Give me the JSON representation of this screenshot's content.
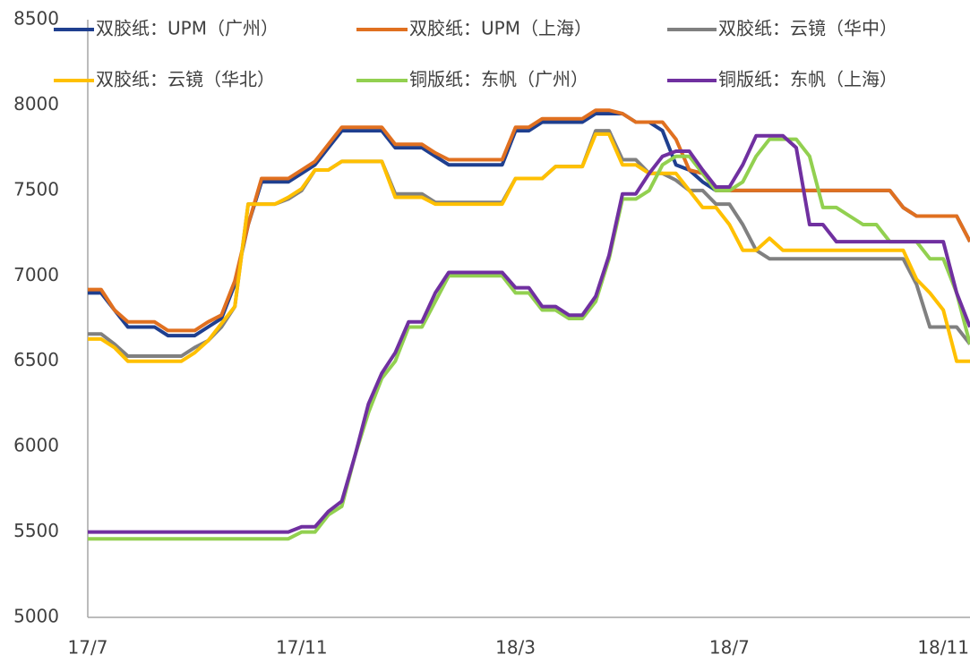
{
  "chart_data": {
    "type": "line",
    "categories": [
      "17/7",
      null,
      null,
      null,
      null,
      null,
      null,
      null,
      null,
      null,
      null,
      null,
      null,
      null,
      null,
      null,
      "17/11",
      null,
      null,
      null,
      null,
      null,
      null,
      null,
      null,
      null,
      null,
      null,
      null,
      null,
      null,
      null,
      "18/3",
      null,
      null,
      null,
      null,
      null,
      null,
      null,
      null,
      null,
      null,
      null,
      null,
      null,
      null,
      null,
      "18/7",
      null,
      null,
      null,
      null,
      null,
      null,
      null,
      null,
      null,
      null,
      null,
      null,
      null,
      null,
      null,
      "18/11",
      null,
      null
    ],
    "ylim": [
      5000,
      8500
    ],
    "yticks": [
      5000,
      5500,
      6000,
      6500,
      7000,
      7500,
      8000,
      8500
    ],
    "series": [
      {
        "name": "双胶纸：UPM（广州）",
        "color": "#1f3f8f",
        "values": [
          6900,
          6900,
          6800,
          6700,
          6700,
          6700,
          6650,
          6650,
          6650,
          6700,
          6750,
          6950,
          7300,
          7550,
          7550,
          7550,
          7600,
          7650,
          7750,
          7850,
          7850,
          7850,
          7850,
          7750,
          7750,
          7750,
          7700,
          7650,
          7650,
          7650,
          7650,
          7650,
          7850,
          7850,
          7900,
          7900,
          7900,
          7900,
          7950,
          7950,
          7950,
          7900,
          7900,
          7850,
          7650,
          7620,
          7550,
          7500,
          7500,
          7500,
          7500,
          7500,
          7500,
          7500,
          7500,
          7500,
          7500,
          7500,
          7500,
          7500,
          7500,
          7400,
          7350,
          7350,
          7350,
          7350,
          7200
        ]
      },
      {
        "name": "双胶纸：UPM（上海）",
        "color": "#e07020",
        "values": [
          6920,
          6920,
          6800,
          6730,
          6730,
          6730,
          6680,
          6680,
          6680,
          6730,
          6770,
          6970,
          7300,
          7570,
          7570,
          7570,
          7620,
          7670,
          7770,
          7870,
          7870,
          7870,
          7870,
          7770,
          7770,
          7770,
          7720,
          7680,
          7680,
          7680,
          7680,
          7680,
          7870,
          7870,
          7920,
          7920,
          7920,
          7920,
          7970,
          7970,
          7950,
          7900,
          7900,
          7900,
          7800,
          7620,
          7600,
          7500,
          7500,
          7500,
          7500,
          7500,
          7500,
          7500,
          7500,
          7500,
          7500,
          7500,
          7500,
          7500,
          7500,
          7400,
          7350,
          7350,
          7350,
          7350,
          7200
        ]
      },
      {
        "name": "双胶纸：云镜（华中）",
        "color": "#808080",
        "values": [
          6660,
          6660,
          6600,
          6530,
          6530,
          6530,
          6530,
          6530,
          6580,
          6620,
          6700,
          6820,
          7420,
          7420,
          7420,
          7450,
          7500,
          7620,
          7620,
          7670,
          7670,
          7670,
          7670,
          7480,
          7480,
          7480,
          7430,
          7430,
          7430,
          7430,
          7430,
          7430,
          7570,
          7570,
          7570,
          7640,
          7640,
          7640,
          7850,
          7850,
          7680,
          7680,
          7600,
          7600,
          7560,
          7500,
          7500,
          7420,
          7420,
          7300,
          7150,
          7100,
          7100,
          7100,
          7100,
          7100,
          7100,
          7100,
          7100,
          7100,
          7100,
          7100,
          6950,
          6700,
          6700,
          6700,
          6600
        ]
      },
      {
        "name": "双胶纸：云镜（华北）",
        "color": "#ffc000",
        "values": [
          6630,
          6630,
          6580,
          6500,
          6500,
          6500,
          6500,
          6500,
          6550,
          6620,
          6720,
          6820,
          7420,
          7420,
          7420,
          7460,
          7510,
          7620,
          7620,
          7670,
          7670,
          7670,
          7670,
          7460,
          7460,
          7460,
          7420,
          7420,
          7420,
          7420,
          7420,
          7420,
          7570,
          7570,
          7570,
          7640,
          7640,
          7640,
          7830,
          7830,
          7650,
          7650,
          7600,
          7600,
          7600,
          7500,
          7400,
          7400,
          7300,
          7150,
          7150,
          7220,
          7150,
          7150,
          7150,
          7150,
          7150,
          7150,
          7150,
          7150,
          7150,
          7150,
          6980,
          6900,
          6800,
          6500,
          6500
        ]
      },
      {
        "name": "铜版纸：东帆（广州）",
        "color": "#92d050",
        "values": [
          5460,
          5460,
          5460,
          5460,
          5460,
          5460,
          5460,
          5460,
          5460,
          5460,
          5460,
          5460,
          5460,
          5460,
          5460,
          5460,
          5500,
          5500,
          5600,
          5650,
          5950,
          6200,
          6400,
          6500,
          6700,
          6700,
          6850,
          7000,
          7000,
          7000,
          7000,
          7000,
          6900,
          6900,
          6800,
          6800,
          6750,
          6750,
          6850,
          7100,
          7450,
          7450,
          7500,
          7650,
          7700,
          7700,
          7600,
          7500,
          7500,
          7550,
          7700,
          7800,
          7800,
          7800,
          7700,
          7400,
          7400,
          7350,
          7300,
          7300,
          7200,
          7200,
          7200,
          7100,
          7100,
          6900,
          6600
        ]
      },
      {
        "name": "铜版纸：东帆（上海）",
        "color": "#7030a0",
        "values": [
          5500,
          5500,
          5500,
          5500,
          5500,
          5500,
          5500,
          5500,
          5500,
          5500,
          5500,
          5500,
          5500,
          5500,
          5500,
          5500,
          5530,
          5530,
          5620,
          5680,
          5950,
          6250,
          6430,
          6550,
          6730,
          6730,
          6900,
          7020,
          7020,
          7020,
          7020,
          7020,
          6930,
          6930,
          6820,
          6820,
          6770,
          6770,
          6880,
          7120,
          7480,
          7480,
          7600,
          7700,
          7730,
          7730,
          7620,
          7520,
          7520,
          7650,
          7820,
          7820,
          7820,
          7750,
          7300,
          7300,
          7200,
          7200,
          7200,
          7200,
          7200,
          7200,
          7200,
          7200,
          7200,
          6900,
          6700
        ]
      }
    ]
  }
}
